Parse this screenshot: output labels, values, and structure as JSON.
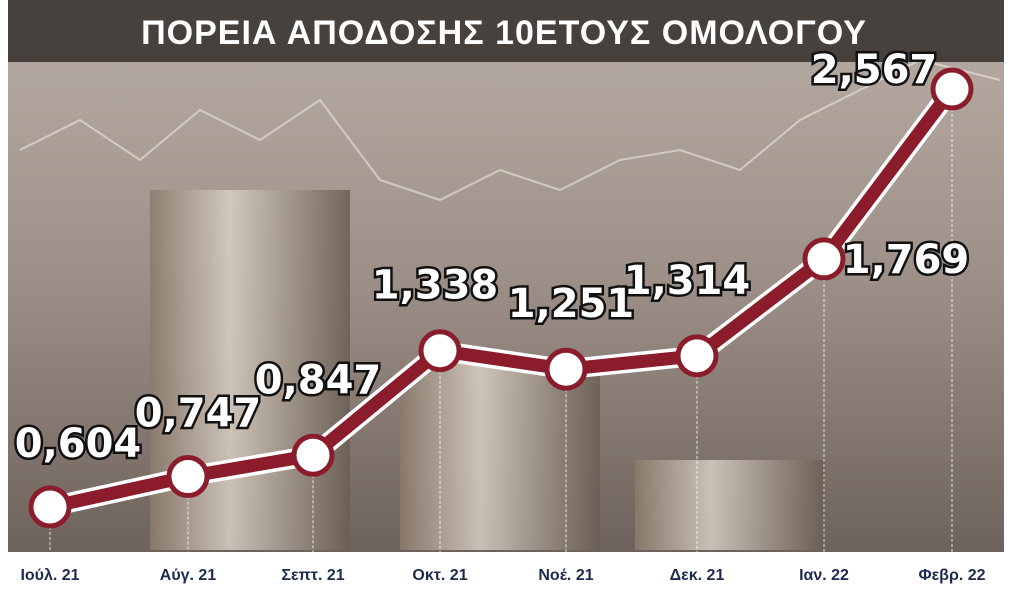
{
  "chart_data": {
    "type": "line",
    "title": "ΠΟΡΕΙΑ ΑΠΟΔΟΣΗΣ 10ΕΤΟΥΣ ΟΜΟΛΟΓΟΥ",
    "categories": [
      "Ιούλ. 21",
      "Αύγ. 21",
      "Σεπτ. 21",
      "Οκτ. 21",
      "Νοέ. 21",
      "Δεκ. 21",
      "Ιαν. 22",
      "Φεβρ. 22"
    ],
    "values": [
      0.604,
      0.747,
      0.847,
      1.338,
      1.251,
      1.314,
      1.769,
      2.567
    ],
    "value_labels": [
      "0,604",
      "0,747",
      "0,847",
      "1,338",
      "1,251",
      "1,314",
      "1,769",
      "2,567"
    ],
    "color": "#8a1c2c"
  }
}
